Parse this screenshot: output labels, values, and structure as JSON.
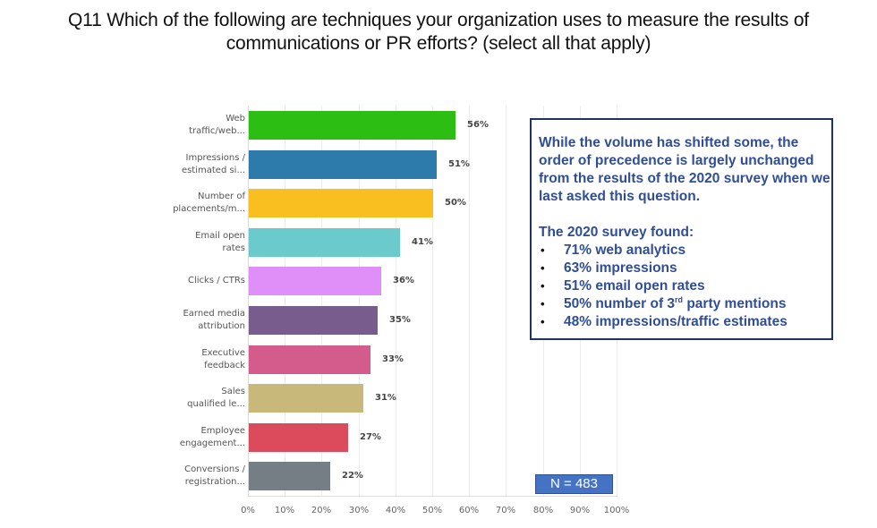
{
  "title": {
    "line1": "Q11 Which of the following are techniques your organization uses to measure the results of",
    "line2": "communications or PR efforts? (select all that apply)"
  },
  "chart_data": {
    "type": "bar",
    "orientation": "horizontal",
    "title": "Q11 Which of the following are techniques your organization uses to measure the results of communications or PR efforts? (select all that apply)",
    "xlabel": "",
    "ylabel": "",
    "xlim": [
      0,
      100
    ],
    "x_ticks": [
      "0%",
      "10%",
      "20%",
      "30%",
      "40%",
      "50%",
      "60%",
      "70%",
      "80%",
      "90%",
      "100%"
    ],
    "grid": true,
    "legend": null,
    "categories": [
      {
        "line1": "Web",
        "line2": "traffic/web..."
      },
      {
        "line1": "Impressions /",
        "line2": "estimated si..."
      },
      {
        "line1": "Number of",
        "line2": "placements/m..."
      },
      {
        "line1": "Email open",
        "line2": "rates"
      },
      {
        "line1": "Clicks / CTRs",
        "line2": ""
      },
      {
        "line1": "Earned media",
        "line2": "attribution"
      },
      {
        "line1": "Executive",
        "line2": "feedback"
      },
      {
        "line1": "Sales",
        "line2": "qualified le..."
      },
      {
        "line1": "Employee",
        "line2": "engagement..."
      },
      {
        "line1": "Conversions /",
        "line2": "registration..."
      }
    ],
    "values": [
      56,
      51,
      50,
      41,
      36,
      35,
      33,
      31,
      27,
      22
    ],
    "value_labels": [
      "56%",
      "51%",
      "50%",
      "41%",
      "36%",
      "35%",
      "33%",
      "31%",
      "27%",
      "22%"
    ],
    "colors": [
      "#2dbe13",
      "#2c7bab",
      "#f9be1f",
      "#6bcacc",
      "#e08ff8",
      "#785c8e",
      "#d45c8d",
      "#c8b97a",
      "#dc4b5b",
      "#757d85"
    ]
  },
  "note": {
    "paragraph": "While the volume has shifted some, the order of precedence is largely unchanged from the results of the 2020 survey when we last asked this question.",
    "subheading": "The 2020 survey found:",
    "bullet_glyph": "•",
    "bullets": [
      {
        "text": "71% web analytics"
      },
      {
        "text": "63% impressions"
      },
      {
        "text": "51% email open rates"
      },
      {
        "pre": "50% number of 3",
        "sup": "rd",
        "post": " party mentions"
      },
      {
        "text": "48% impressions/traffic estimates"
      }
    ]
  },
  "sample_size": {
    "label": "N = 483"
  }
}
